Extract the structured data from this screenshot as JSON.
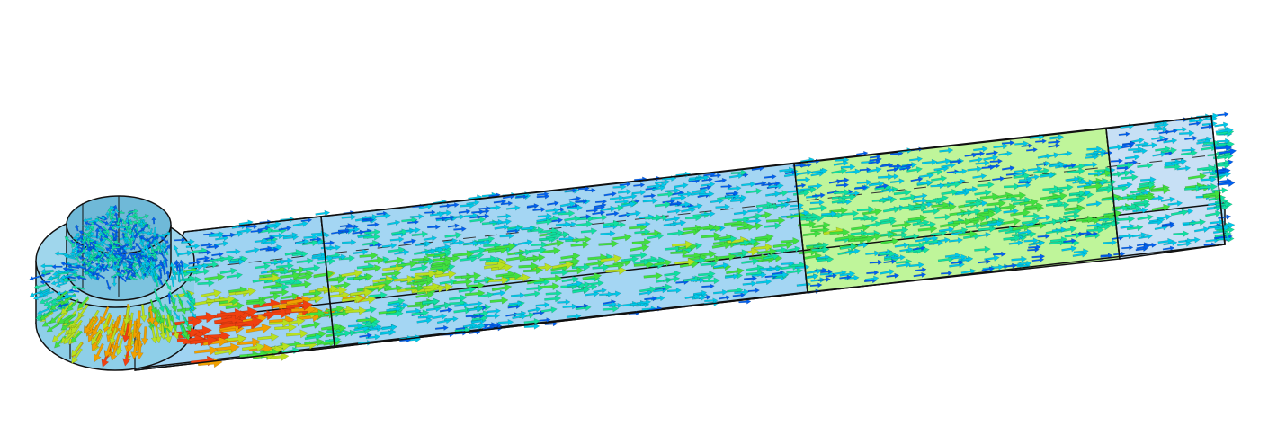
{
  "scene": {
    "background": "#ffffff",
    "edge_color": "#111111",
    "regions": [
      {
        "name": "inlet-channel-region",
        "fill": "#9fd3f2"
      },
      {
        "name": "main-channel-region",
        "fill": "#a4d6f3"
      },
      {
        "name": "green-section-region",
        "fill": "#bff59a"
      },
      {
        "name": "outlet-section-region",
        "fill": "#c7e0f5"
      }
    ],
    "vector_colormap": [
      "#0010d8",
      "#0060f0",
      "#00c8e8",
      "#10e0a0",
      "#40e040",
      "#b8e020",
      "#f0a000",
      "#f04010"
    ]
  }
}
